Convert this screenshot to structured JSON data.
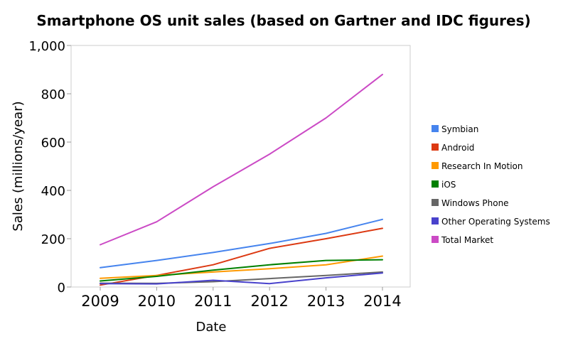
{
  "chart_data": {
    "type": "line",
    "title": "Smartphone OS unit sales (based on Gartner and IDC figures)",
    "xlabel": "Date",
    "ylabel": "Sales (millions/year)",
    "ylim": [
      0,
      1000
    ],
    "yticks": [
      0,
      200,
      400,
      600,
      800,
      1000
    ],
    "ytick_labels": [
      "0",
      "200",
      "400",
      "600",
      "800",
      "1,000"
    ],
    "categories": [
      "2009",
      "2010",
      "2011",
      "2012",
      "2013",
      "2014"
    ],
    "grid": false,
    "legend_position": "right",
    "series": [
      {
        "name": "Symbian",
        "color": "#4684ee",
        "values": [
          80,
          110,
          143,
          180,
          222,
          280
        ]
      },
      {
        "name": "Android",
        "color": "#dc3912",
        "values": [
          8,
          48,
          92,
          160,
          200,
          243
        ]
      },
      {
        "name": "Research In Motion",
        "color": "#ff9900",
        "values": [
          36,
          48,
          62,
          76,
          92,
          128
        ]
      },
      {
        "name": "iOS",
        "color": "#008000",
        "values": [
          25,
          44,
          70,
          92,
          110,
          113
        ]
      },
      {
        "name": "Windows Phone",
        "color": "#666666",
        "values": [
          16,
          15,
          22,
          35,
          48,
          62
        ]
      },
      {
        "name": "Other Operating Systems",
        "color": "#4942cc",
        "values": [
          14,
          13,
          28,
          14,
          38,
          58
        ]
      },
      {
        "name": "Total Market",
        "color": "#cb4ac5",
        "values": [
          175,
          270,
          415,
          550,
          700,
          880
        ]
      }
    ]
  }
}
